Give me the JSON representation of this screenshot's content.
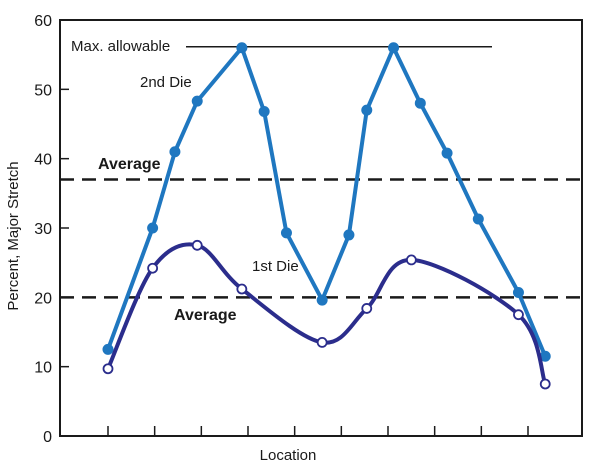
{
  "chart_data": {
    "type": "line",
    "xlabel": "Location",
    "ylabel": "Percent, Major Stretch",
    "ylim": [
      0,
      60
    ],
    "yticks": [
      0,
      10,
      20,
      30,
      40,
      50,
      60
    ],
    "xlim": [
      0,
      10.4
    ],
    "x_tick_count": 10,
    "grid": false,
    "series": [
      {
        "name": "2nd Die",
        "color": "#1f77c0",
        "curve": "straight",
        "marker": "filled-circle",
        "points": [
          {
            "x": 0,
            "y": 12.5
          },
          {
            "x": 1,
            "y": 30
          },
          {
            "x": 1.5,
            "y": 41
          },
          {
            "x": 2,
            "y": 48.3
          },
          {
            "x": 3,
            "y": 56
          },
          {
            "x": 3.5,
            "y": 46.8
          },
          {
            "x": 4,
            "y": 29.3
          },
          {
            "x": 4.8,
            "y": 19.6
          },
          {
            "x": 5.4,
            "y": 29
          },
          {
            "x": 5.8,
            "y": 47
          },
          {
            "x": 6.4,
            "y": 56
          },
          {
            "x": 7.0,
            "y": 48
          },
          {
            "x": 7.6,
            "y": 40.8
          },
          {
            "x": 8.3,
            "y": 31.3
          },
          {
            "x": 9.2,
            "y": 20.7
          },
          {
            "x": 9.8,
            "y": 11.5
          }
        ]
      },
      {
        "name": "1st Die",
        "color": "#2b2d8c",
        "curve": "smooth",
        "marker": "open-circle",
        "points": [
          {
            "x": 0,
            "y": 9.7
          },
          {
            "x": 1,
            "y": 24.2
          },
          {
            "x": 2,
            "y": 27.5
          },
          {
            "x": 3,
            "y": 21.2
          },
          {
            "x": 4.8,
            "y": 13.5
          },
          {
            "x": 5.8,
            "y": 18.4
          },
          {
            "x": 6.8,
            "y": 25.4
          },
          {
            "x": 9.2,
            "y": 17.5
          },
          {
            "x": 9.8,
            "y": 7.5
          }
        ]
      }
    ],
    "reference_lines": [
      {
        "label": "Max. allowable",
        "y": 56,
        "style": "solid"
      },
      {
        "label": "Average",
        "y": 37,
        "style": "dashed",
        "series": "2nd Die"
      },
      {
        "label": "Average",
        "y": 20,
        "style": "dashed",
        "series": "1st Die"
      }
    ],
    "annotations": {
      "second_die": "2nd Die",
      "first_die": "1st Die",
      "max_allowable": "Max. allowable",
      "average_upper": "Average",
      "average_lower": "Average"
    }
  }
}
